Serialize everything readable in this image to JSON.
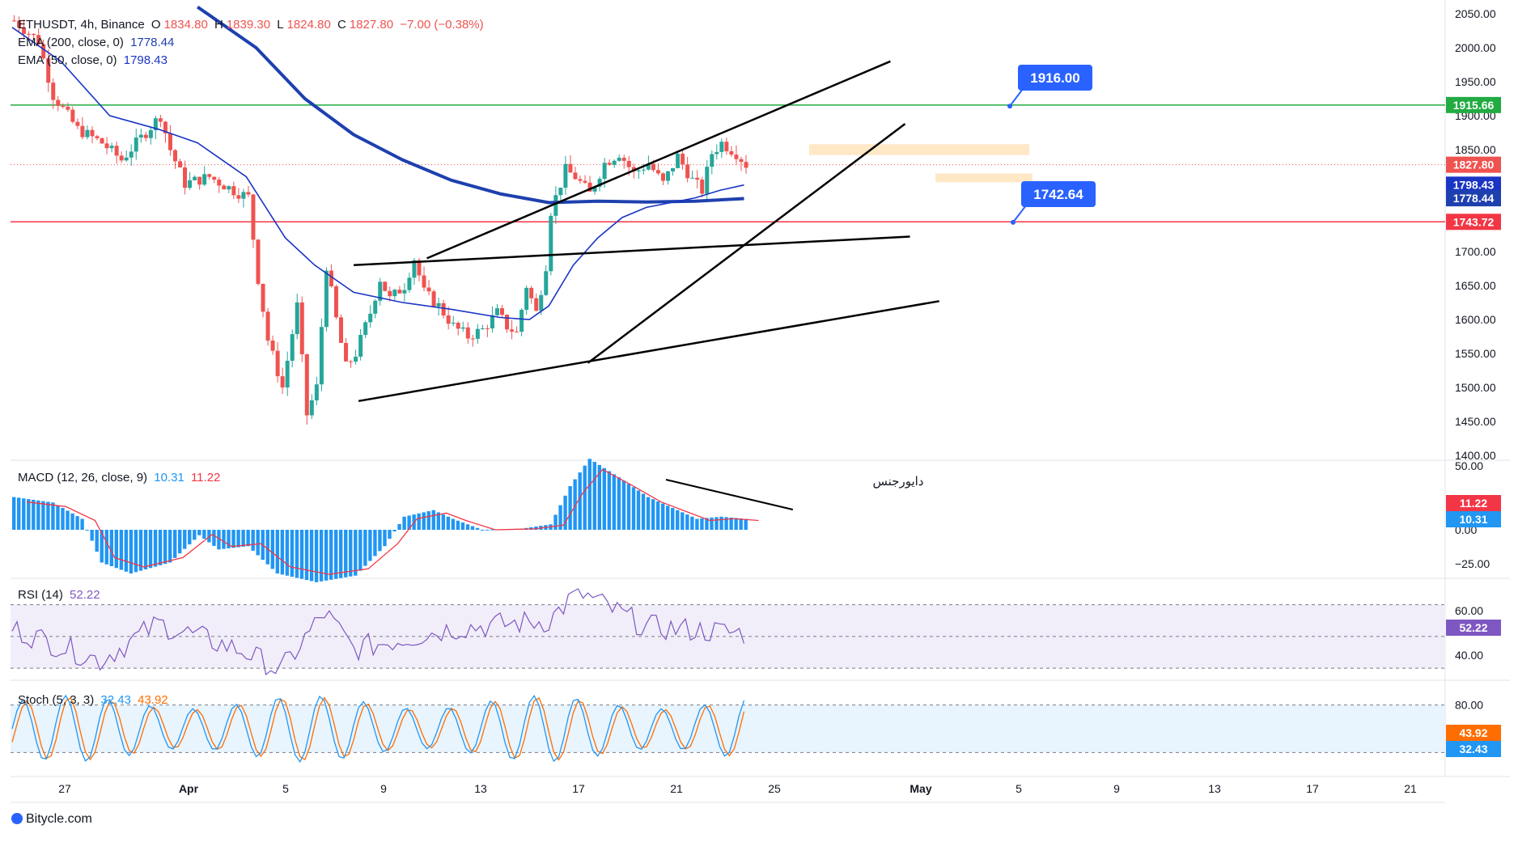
{
  "header": {
    "symbol": "ETHUSDT, 4h, Binance",
    "o_label": "O",
    "o_value": "1834.80",
    "h_label": "H",
    "h_value": "1839.30",
    "l_label": "L",
    "l_value": "1824.80",
    "c_label": "C",
    "c_value": "1827.80",
    "change": "−7.00 (−0.38%)",
    "ema200_label": "EMA (200, close, 0)",
    "ema200_value": "1778.44",
    "ema50_label": "EMA (50, close, 0)",
    "ema50_value": "1798.43"
  },
  "indicators": {
    "macd_label": "MACD (12, 26, close, 9)",
    "macd_value": "10.31",
    "signal_value": "11.22",
    "rsi_label": "RSI (14)",
    "rsi_value": "52.22",
    "stoch_label": "Stoch (5, 3, 3)",
    "stoch_k": "32.43",
    "stoch_d": "43.92"
  },
  "annotations": {
    "divergence_text": "دایورجنس",
    "target_top": "1916.00",
    "target_bottom": "1742.64"
  },
  "footer": {
    "brand": "Bitycle.com"
  },
  "colors": {
    "up": "#26a69a",
    "down": "#ef5350",
    "ema200": "#1e40af",
    "ema50": "#1a35c4",
    "support": "#f23645",
    "resistance": "#22ab42",
    "accent": "#2962ff",
    "macd_hist": "#2196f3",
    "signal": "#f23645",
    "rsi": "#7e57c2",
    "stoch_k": "#2196f3",
    "stoch_d": "#ff6d00",
    "zone": "#ffcc80"
  },
  "chart_data": {
    "type": "candlestick",
    "timeframe": "4h",
    "price_axis": {
      "ticks": [
        "2050.00",
        "2000.00",
        "1950.00",
        "1900.00",
        "1850.00",
        "1800.00",
        "1750.00",
        "1700.00",
        "1650.00",
        "1600.00",
        "1550.00",
        "1500.00",
        "1450.00",
        "1400.00"
      ],
      "range": [
        1400,
        2060
      ]
    },
    "time_axis": {
      "ticks": [
        "27",
        "Apr",
        "5",
        "9",
        "13",
        "17",
        "21",
        "25",
        "May",
        "5",
        "9",
        "13",
        "17",
        "21"
      ]
    },
    "price_labels": {
      "last": "1827.80",
      "ema50": "1798.43",
      "ema200": "1778.44",
      "support": "1743.72",
      "resistance": "1915.66"
    },
    "levels": {
      "support": 1743.72,
      "resistance": 1915.66
    },
    "price_path": [
      [
        0,
        2040
      ],
      [
        5,
        2010
      ],
      [
        8,
        1930
      ],
      [
        13,
        1880
      ],
      [
        18,
        1860
      ],
      [
        22,
        1835
      ],
      [
        30,
        1900
      ],
      [
        32,
        1850
      ],
      [
        35,
        1800
      ],
      [
        40,
        1810
      ],
      [
        45,
        1790
      ],
      [
        48,
        1780
      ],
      [
        50,
        1660
      ],
      [
        52,
        1570
      ],
      [
        55,
        1500
      ],
      [
        58,
        1620
      ],
      [
        60,
        1460
      ],
      [
        62,
        1500
      ],
      [
        64,
        1680
      ],
      [
        66,
        1600
      ],
      [
        68,
        1530
      ],
      [
        70,
        1550
      ],
      [
        73,
        1610
      ],
      [
        75,
        1660
      ],
      [
        77,
        1630
      ],
      [
        80,
        1650
      ],
      [
        82,
        1690
      ],
      [
        84,
        1640
      ],
      [
        87,
        1620
      ],
      [
        90,
        1590
      ],
      [
        93,
        1575
      ],
      [
        96,
        1585
      ],
      [
        99,
        1610
      ],
      [
        101,
        1590
      ],
      [
        103,
        1580
      ],
      [
        105,
        1650
      ],
      [
        107,
        1610
      ],
      [
        109,
        1680
      ],
      [
        110,
        1760
      ],
      [
        113,
        1820
      ],
      [
        115,
        1810
      ],
      [
        118,
        1785
      ],
      [
        121,
        1830
      ],
      [
        124,
        1845
      ],
      [
        127,
        1815
      ],
      [
        130,
        1830
      ],
      [
        133,
        1800
      ],
      [
        136,
        1840
      ],
      [
        139,
        1805
      ],
      [
        141,
        1790
      ],
      [
        143,
        1845
      ],
      [
        145,
        1860
      ],
      [
        148,
        1845
      ],
      [
        150,
        1828
      ]
    ],
    "ema200_path": [
      [
        38,
        2060
      ],
      [
        50,
        2000
      ],
      [
        60,
        1925
      ],
      [
        70,
        1872
      ],
      [
        80,
        1835
      ],
      [
        90,
        1805
      ],
      [
        100,
        1785
      ],
      [
        110,
        1772
      ],
      [
        120,
        1774
      ],
      [
        130,
        1773
      ],
      [
        140,
        1774
      ],
      [
        150,
        1778
      ]
    ],
    "ema50_path": [
      [
        0,
        2030
      ],
      [
        10,
        1980
      ],
      [
        20,
        1900
      ],
      [
        30,
        1880
      ],
      [
        38,
        1860
      ],
      [
        48,
        1810
      ],
      [
        56,
        1720
      ],
      [
        62,
        1680
      ],
      [
        70,
        1640
      ],
      [
        80,
        1625
      ],
      [
        90,
        1615
      ],
      [
        100,
        1603
      ],
      [
        106,
        1600
      ],
      [
        110,
        1620
      ],
      [
        115,
        1680
      ],
      [
        120,
        1720
      ],
      [
        125,
        1750
      ],
      [
        130,
        1765
      ],
      [
        135,
        1772
      ],
      [
        140,
        1779
      ],
      [
        145,
        1790
      ],
      [
        150,
        1798
      ]
    ],
    "macd": {
      "values": [
        "10.31"
      ],
      "signal": [
        "11.22"
      ],
      "axis_ticks": [
        "50.00",
        "0.00",
        "−25.00"
      ]
    },
    "rsi": {
      "value": 52.22,
      "axis_ticks": [
        "60.00",
        "40.00"
      ],
      "band": [
        30,
        70
      ]
    },
    "stoch": {
      "k": 32.43,
      "d": 43.92,
      "axis_ticks": [
        "80.00"
      ],
      "band": [
        20,
        80
      ]
    }
  }
}
